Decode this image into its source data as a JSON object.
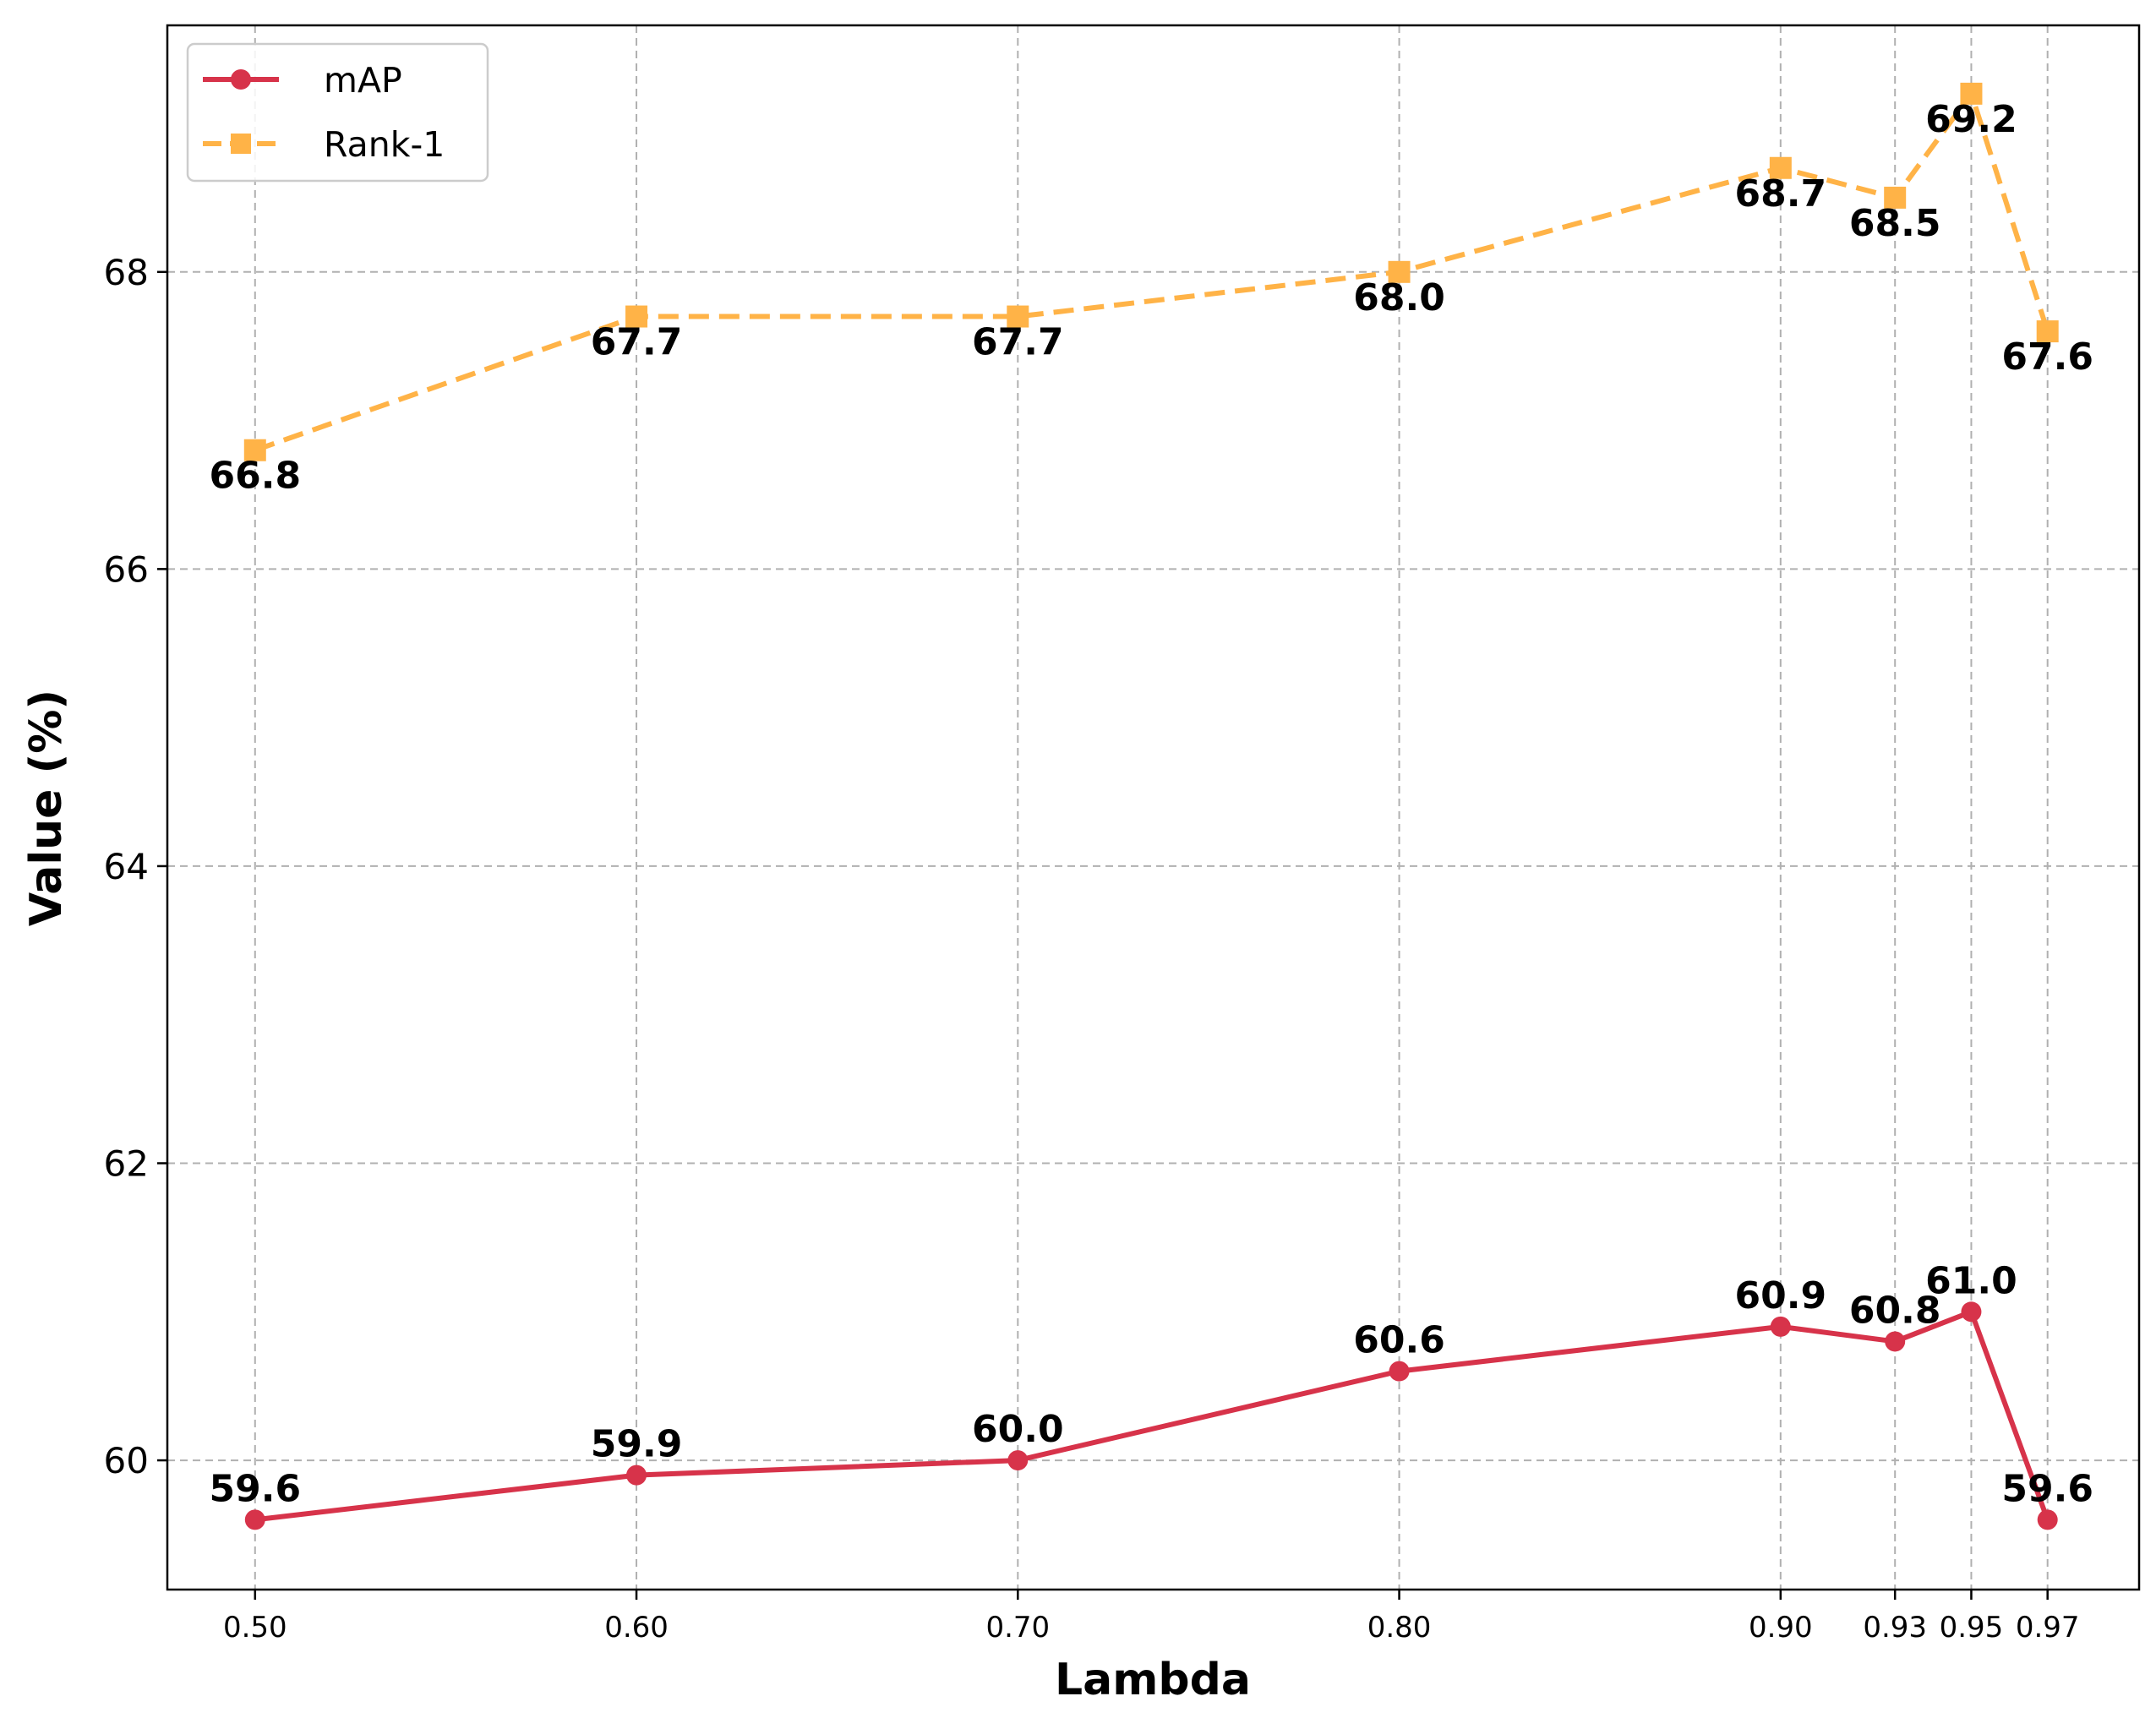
{
  "chart_data": {
    "type": "line",
    "title": "",
    "xlabel": "Lambda",
    "ylabel": "Value (%)",
    "x": [
      0.5,
      0.6,
      0.7,
      0.8,
      0.9,
      0.93,
      0.95,
      0.97
    ],
    "x_tick_labels": [
      "0.50",
      "0.60",
      "0.70",
      "0.80",
      "0.90",
      "0.93",
      "0.95",
      "0.97"
    ],
    "y_ticks": [
      60,
      62,
      64,
      66,
      68
    ],
    "xlim": [
      0.477,
      0.994
    ],
    "ylim": [
      59.13,
      69.66
    ],
    "grid": true,
    "legend_position": "top-left",
    "series": [
      {
        "name": "mAP",
        "color": "#d7334a",
        "line_style": "solid",
        "marker": "circle",
        "values": [
          59.6,
          59.9,
          60.0,
          60.6,
          60.9,
          60.8,
          61.0,
          59.6
        ],
        "labels": [
          "59.6",
          "59.9",
          "60.0",
          "60.6",
          "60.9",
          "60.8",
          "61.0",
          "59.6"
        ],
        "label_position": "above"
      },
      {
        "name": "Rank-1",
        "color": "#ffb347",
        "line_style": "dashed",
        "marker": "square",
        "values": [
          66.8,
          67.7,
          67.7,
          68.0,
          68.7,
          68.5,
          69.2,
          67.6
        ],
        "labels": [
          "66.8",
          "67.7",
          "67.7",
          "68.0",
          "68.7",
          "68.5",
          "69.2",
          "67.6"
        ],
        "label_position": "below"
      }
    ]
  }
}
